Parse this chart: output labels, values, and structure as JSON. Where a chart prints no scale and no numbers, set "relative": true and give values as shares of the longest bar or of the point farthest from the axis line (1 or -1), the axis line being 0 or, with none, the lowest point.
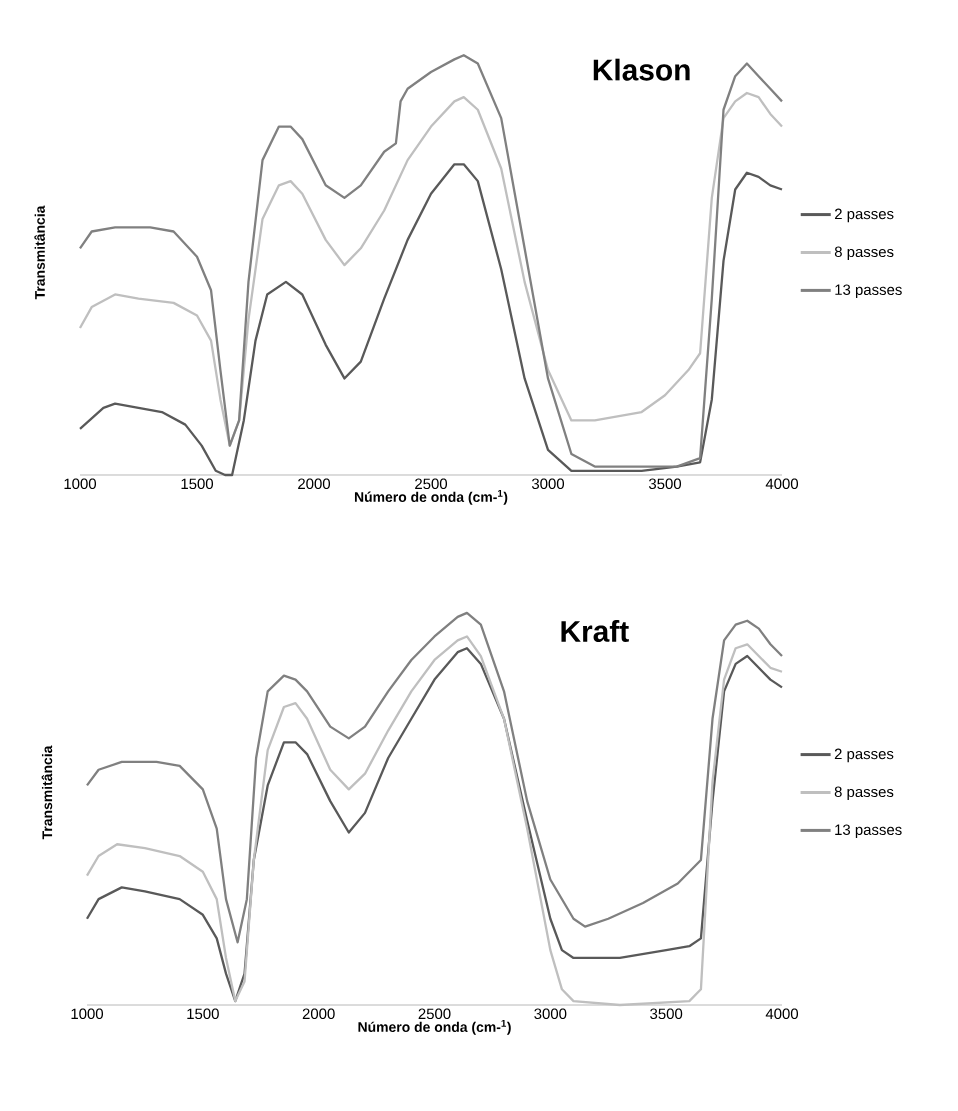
{
  "chart_data": [
    {
      "type": "line",
      "title": "Klason",
      "xlabel": "Número de onda (cm-$^{1}$)",
      "ylabel": "Transmitância",
      "relative": true,
      "xlim": [
        1000,
        4000
      ],
      "xticks": [
        1000,
        1500,
        2000,
        2500,
        3000,
        3500,
        4000
      ],
      "legend": "right",
      "series": [
        {
          "name": "2 passes",
          "color": "#595959",
          "x": [
            1000,
            1100,
            1150,
            1250,
            1350,
            1450,
            1520,
            1580,
            1620,
            1650,
            1700,
            1750,
            1800,
            1880,
            1950,
            2050,
            2130,
            2200,
            2300,
            2400,
            2500,
            2600,
            2640,
            2700,
            2800,
            2900,
            3000,
            3100,
            3200,
            3400,
            3550,
            3650,
            3700,
            3750,
            3800,
            3850,
            3900,
            3950,
            4000
          ],
          "values": [
            0.11,
            0.16,
            0.17,
            0.16,
            0.15,
            0.12,
            0.07,
            0.01,
            0.0,
            0.0,
            0.13,
            0.32,
            0.43,
            0.46,
            0.43,
            0.31,
            0.23,
            0.27,
            0.42,
            0.56,
            0.67,
            0.74,
            0.74,
            0.7,
            0.49,
            0.23,
            0.06,
            0.01,
            0.01,
            0.01,
            0.02,
            0.03,
            0.18,
            0.51,
            0.68,
            0.72,
            0.71,
            0.69,
            0.68
          ]
        },
        {
          "name": "8 passes",
          "color": "#bfbfbf",
          "x": [
            1000,
            1050,
            1150,
            1250,
            1400,
            1500,
            1560,
            1600,
            1640,
            1680,
            1720,
            1780,
            1850,
            1900,
            1950,
            2050,
            2130,
            2200,
            2300,
            2400,
            2500,
            2600,
            2640,
            2700,
            2800,
            2900,
            3000,
            3100,
            3200,
            3400,
            3500,
            3600,
            3650,
            3700,
            3750,
            3800,
            3850,
            3900,
            3950,
            4000
          ],
          "values": [
            0.35,
            0.4,
            0.43,
            0.42,
            0.41,
            0.38,
            0.32,
            0.18,
            0.07,
            0.13,
            0.37,
            0.61,
            0.69,
            0.7,
            0.67,
            0.56,
            0.5,
            0.54,
            0.63,
            0.75,
            0.83,
            0.89,
            0.9,
            0.87,
            0.73,
            0.46,
            0.25,
            0.13,
            0.13,
            0.15,
            0.19,
            0.25,
            0.29,
            0.66,
            0.85,
            0.89,
            0.91,
            0.9,
            0.86,
            0.83
          ]
        },
        {
          "name": "13 passes",
          "color": "#808080",
          "x": [
            1000,
            1050,
            1150,
            1300,
            1400,
            1500,
            1560,
            1600,
            1640,
            1680,
            1720,
            1780,
            1850,
            1900,
            1950,
            2050,
            2130,
            2200,
            2300,
            2350,
            2370,
            2400,
            2500,
            2600,
            2640,
            2700,
            2800,
            2900,
            3000,
            3100,
            3200,
            3400,
            3550,
            3650,
            3700,
            3750,
            3800,
            3850,
            3900,
            3950,
            4000
          ],
          "values": [
            0.54,
            0.58,
            0.59,
            0.59,
            0.58,
            0.52,
            0.44,
            0.25,
            0.07,
            0.13,
            0.46,
            0.75,
            0.83,
            0.83,
            0.8,
            0.69,
            0.66,
            0.69,
            0.77,
            0.79,
            0.89,
            0.92,
            0.96,
            0.99,
            1.0,
            0.98,
            0.85,
            0.54,
            0.23,
            0.05,
            0.02,
            0.02,
            0.02,
            0.04,
            0.42,
            0.87,
            0.95,
            0.98,
            0.95,
            0.92,
            0.89
          ]
        }
      ]
    },
    {
      "type": "line",
      "title": "Kraft",
      "xlabel": "Número de onda (cm-$^{1}$)",
      "ylabel": "Transmitância",
      "relative": true,
      "xlim": [
        1000,
        4000
      ],
      "xticks": [
        1000,
        1500,
        2000,
        2500,
        3000,
        3500,
        4000
      ],
      "legend": "right",
      "series": [
        {
          "name": "2 passes",
          "color": "#595959",
          "x": [
            1000,
            1050,
            1150,
            1250,
            1400,
            1500,
            1560,
            1600,
            1640,
            1680,
            1720,
            1780,
            1850,
            1900,
            1950,
            2050,
            2130,
            2200,
            2300,
            2400,
            2500,
            2600,
            2640,
            2700,
            2800,
            2900,
            3000,
            3050,
            3100,
            3300,
            3500,
            3600,
            3650,
            3700,
            3750,
            3800,
            3850,
            3900,
            3950,
            4000
          ],
          "values": [
            0.22,
            0.27,
            0.3,
            0.29,
            0.27,
            0.23,
            0.17,
            0.08,
            0.01,
            0.08,
            0.37,
            0.56,
            0.67,
            0.67,
            0.64,
            0.52,
            0.44,
            0.49,
            0.63,
            0.73,
            0.83,
            0.9,
            0.91,
            0.87,
            0.73,
            0.47,
            0.22,
            0.14,
            0.12,
            0.12,
            0.14,
            0.15,
            0.17,
            0.52,
            0.8,
            0.87,
            0.89,
            0.86,
            0.83,
            0.81
          ]
        },
        {
          "name": "8 passes",
          "color": "#bfbfbf",
          "x": [
            1000,
            1050,
            1130,
            1250,
            1400,
            1500,
            1560,
            1600,
            1640,
            1680,
            1720,
            1780,
            1850,
            1900,
            1950,
            2050,
            2130,
            2200,
            2300,
            2400,
            2500,
            2600,
            2640,
            2700,
            2800,
            2900,
            3000,
            3050,
            3100,
            3300,
            3600,
            3650,
            3700,
            3750,
            3800,
            3850,
            3900,
            3950,
            4000
          ],
          "values": [
            0.33,
            0.38,
            0.41,
            0.4,
            0.38,
            0.34,
            0.27,
            0.12,
            0.01,
            0.06,
            0.37,
            0.65,
            0.76,
            0.77,
            0.73,
            0.6,
            0.55,
            0.59,
            0.7,
            0.8,
            0.88,
            0.93,
            0.94,
            0.89,
            0.73,
            0.45,
            0.14,
            0.04,
            0.01,
            0.0,
            0.01,
            0.04,
            0.57,
            0.83,
            0.91,
            0.92,
            0.89,
            0.86,
            0.85
          ]
        },
        {
          "name": "13 passes",
          "color": "#808080",
          "x": [
            1000,
            1050,
            1150,
            1300,
            1400,
            1500,
            1560,
            1600,
            1650,
            1690,
            1730,
            1780,
            1850,
            1900,
            1950,
            2050,
            2130,
            2200,
            2300,
            2400,
            2500,
            2600,
            2640,
            2700,
            2800,
            2900,
            3000,
            3100,
            3150,
            3250,
            3400,
            3550,
            3650,
            3700,
            3750,
            3800,
            3850,
            3900,
            3950,
            4000
          ],
          "values": [
            0.56,
            0.6,
            0.62,
            0.62,
            0.61,
            0.55,
            0.45,
            0.27,
            0.16,
            0.27,
            0.63,
            0.8,
            0.84,
            0.83,
            0.8,
            0.71,
            0.68,
            0.71,
            0.8,
            0.88,
            0.94,
            0.99,
            1.0,
            0.97,
            0.8,
            0.52,
            0.32,
            0.22,
            0.2,
            0.22,
            0.26,
            0.31,
            0.37,
            0.73,
            0.93,
            0.97,
            0.98,
            0.96,
            0.92,
            0.89
          ]
        }
      ]
    }
  ]
}
